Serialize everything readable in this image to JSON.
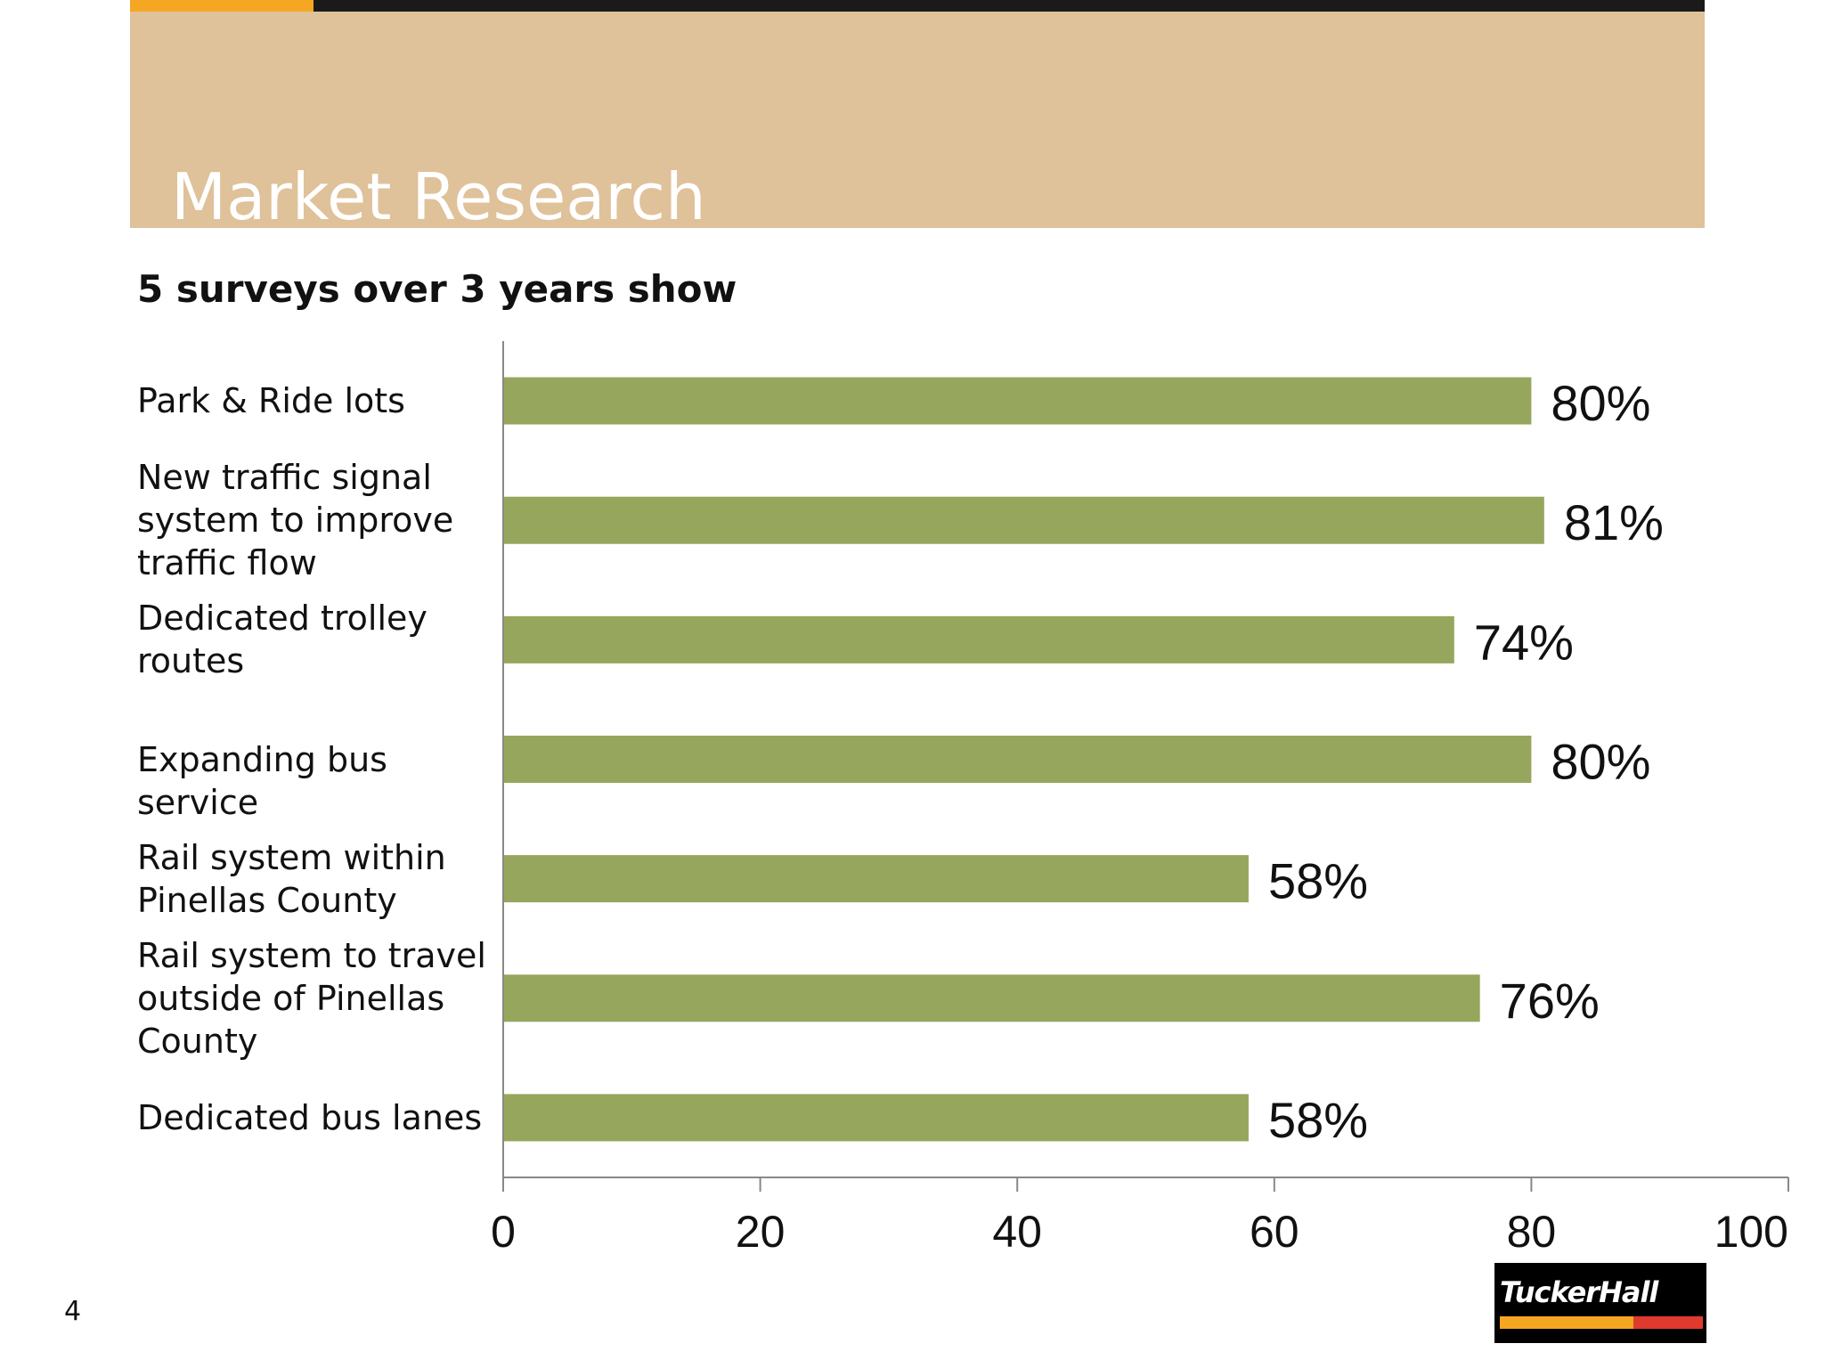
{
  "header": {
    "title": "Market Research",
    "band_color": "#dfc19a",
    "accent_orange": "#f5a623",
    "accent_dark": "#1a1a1a"
  },
  "subtitle": "5 surveys over 3 years show",
  "chart_data": {
    "type": "bar",
    "orientation": "horizontal",
    "categories": [
      [
        "Park & Ride lots"
      ],
      [
        "New traffic signal",
        "system to improve",
        "traffic flow"
      ],
      [
        "Dedicated trolley",
        "routes"
      ],
      [
        "Expanding bus service"
      ],
      [
        "Rail system within",
        "Pinellas County"
      ],
      [
        "Rail system to travel",
        "outside of Pinellas",
        "County"
      ],
      [
        "Dedicated bus lanes"
      ]
    ],
    "values": [
      80,
      81,
      74,
      80,
      58,
      76,
      58
    ],
    "data_labels": [
      "80%",
      "81%",
      "74%",
      "80%",
      "58%",
      "76%",
      "58%"
    ],
    "xlim": [
      0,
      100
    ],
    "x_ticks": [
      0,
      20,
      40,
      60,
      80,
      100
    ],
    "bar_color": "#97a65d",
    "title": "",
    "xlabel": "",
    "ylabel": ""
  },
  "footer": {
    "page_number": "4",
    "logo_text": "TuckerHall",
    "logo_orange": "#f5a623",
    "logo_red": "#e03a2e"
  }
}
